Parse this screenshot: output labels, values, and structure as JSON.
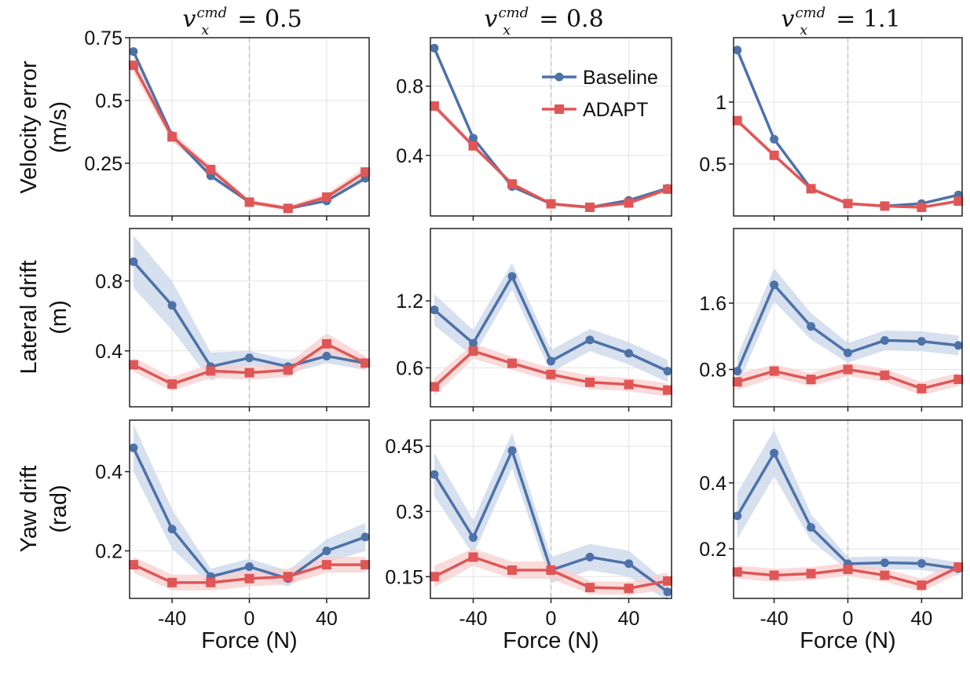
{
  "column_titles": [
    {
      "var": "v",
      "sub": "x",
      "sup": "cmd",
      "value": "= 0.5"
    },
    {
      "var": "v",
      "sub": "x",
      "sup": "cmd",
      "value": "= 0.8"
    },
    {
      "var": "v",
      "sub": "x",
      "sup": "cmd",
      "value": "= 1.1"
    }
  ],
  "row_labels": [
    {
      "line1": "Velocity error",
      "line2": "(m/s)"
    },
    {
      "line1": "Lateral drift",
      "line2": "(m)"
    },
    {
      "line1": "Yaw drift",
      "line2": "(rad)"
    }
  ],
  "xlabel": "Force (N)",
  "legend": [
    {
      "name": "Baseline",
      "color": "#4c72a8",
      "marker": "circle"
    },
    {
      "name": "ADAPT",
      "color": "#e05656",
      "marker": "square"
    }
  ],
  "colors": {
    "baseline": "#4c72a8",
    "adapt": "#e05656",
    "baseline_band": "#c9d5e9",
    "adapt_band": "#f8cfcf"
  },
  "chart_data": [
    {
      "type": "line",
      "row": 0,
      "col": 0,
      "x": [
        -60,
        -40,
        -20,
        0,
        20,
        40,
        60
      ],
      "xlim": [
        -62,
        62
      ],
      "ylim": [
        0.04,
        0.75
      ],
      "xticks": [
        -40,
        0,
        40
      ],
      "xtick_labels": [
        "-40",
        "0",
        "40"
      ],
      "yticks": [
        0.25,
        0.5,
        0.75
      ],
      "ytick_labels": [
        "0.25",
        "0.5",
        "0.75"
      ],
      "series": [
        {
          "name": "Baseline",
          "values": [
            0.695,
            0.36,
            0.2,
            0.095,
            0.07,
            0.1,
            0.19
          ],
          "band": [
            0.01,
            0.01,
            0.01,
            0.005,
            0.005,
            0.005,
            0.01
          ]
        },
        {
          "name": "ADAPT",
          "values": [
            0.64,
            0.355,
            0.225,
            0.095,
            0.07,
            0.115,
            0.215
          ],
          "band": [
            0.03,
            0.02,
            0.015,
            0.01,
            0.01,
            0.015,
            0.02
          ]
        }
      ]
    },
    {
      "type": "line",
      "row": 0,
      "col": 1,
      "x": [
        -60,
        -40,
        -20,
        0,
        20,
        40,
        60
      ],
      "xlim": [
        -62,
        62
      ],
      "ylim": [
        0.05,
        1.08
      ],
      "xticks": [
        -40,
        0,
        40
      ],
      "xtick_labels": [
        "-40",
        "0",
        "40"
      ],
      "yticks": [
        0.4,
        0.8
      ],
      "ytick_labels": [
        "0.4",
        "0.8"
      ],
      "legend_location": "top-right",
      "series": [
        {
          "name": "Baseline",
          "values": [
            1.02,
            0.5,
            0.22,
            0.12,
            0.1,
            0.14,
            0.21
          ],
          "band": [
            0.01,
            0.01,
            0.01,
            0.005,
            0.005,
            0.01,
            0.01
          ]
        },
        {
          "name": "ADAPT",
          "values": [
            0.685,
            0.455,
            0.235,
            0.12,
            0.1,
            0.125,
            0.205
          ],
          "band": [
            0.02,
            0.015,
            0.01,
            0.01,
            0.01,
            0.01,
            0.015
          ]
        }
      ]
    },
    {
      "type": "line",
      "row": 0,
      "col": 2,
      "x": [
        -60,
        -40,
        -20,
        0,
        20,
        40,
        60
      ],
      "xlim": [
        -62,
        62
      ],
      "ylim": [
        0.08,
        1.52
      ],
      "xticks": [
        -40,
        0,
        40
      ],
      "xtick_labels": [
        "-40",
        "0",
        "40"
      ],
      "yticks": [
        0.5,
        1.0
      ],
      "ytick_labels": [
        "0.5",
        "1"
      ],
      "series": [
        {
          "name": "Baseline",
          "values": [
            1.42,
            0.7,
            0.3,
            0.18,
            0.16,
            0.18,
            0.25
          ],
          "band": [
            0.01,
            0.01,
            0.01,
            0.005,
            0.005,
            0.01,
            0.01
          ]
        },
        {
          "name": "ADAPT",
          "values": [
            0.85,
            0.57,
            0.3,
            0.18,
            0.16,
            0.15,
            0.2
          ],
          "band": [
            0.02,
            0.02,
            0.015,
            0.01,
            0.01,
            0.01,
            0.015
          ]
        }
      ]
    },
    {
      "type": "line",
      "row": 1,
      "col": 0,
      "x": [
        -60,
        -40,
        -20,
        0,
        20,
        40,
        60
      ],
      "xlim": [
        -62,
        62
      ],
      "ylim": [
        0.08,
        1.1
      ],
      "xticks": [
        -40,
        0,
        40
      ],
      "xtick_labels": [
        "-40",
        "0",
        "40"
      ],
      "yticks": [
        0.4,
        0.8
      ],
      "ytick_labels": [
        "0.4",
        "0.8"
      ],
      "series": [
        {
          "name": "Baseline",
          "values": [
            0.91,
            0.66,
            0.31,
            0.36,
            0.31,
            0.37,
            0.33
          ],
          "band": [
            0.15,
            0.14,
            0.08,
            0.04,
            0.04,
            0.04,
            0.04
          ]
        },
        {
          "name": "ADAPT",
          "values": [
            0.32,
            0.21,
            0.285,
            0.275,
            0.29,
            0.44,
            0.33
          ],
          "band": [
            0.04,
            0.04,
            0.04,
            0.04,
            0.04,
            0.06,
            0.04
          ]
        }
      ]
    },
    {
      "type": "line",
      "row": 1,
      "col": 1,
      "x": [
        -60,
        -40,
        -20,
        0,
        20,
        40,
        60
      ],
      "xlim": [
        -62,
        62
      ],
      "ylim": [
        0.25,
        1.85
      ],
      "xticks": [
        -40,
        0,
        40
      ],
      "xtick_labels": [
        "-40",
        "0",
        "40"
      ],
      "yticks": [
        0.6,
        1.2
      ],
      "ytick_labels": [
        "0.6",
        "1.2"
      ],
      "series": [
        {
          "name": "Baseline",
          "values": [
            1.12,
            0.82,
            1.42,
            0.66,
            0.85,
            0.73,
            0.57
          ],
          "band": [
            0.14,
            0.12,
            0.12,
            0.1,
            0.1,
            0.1,
            0.1
          ]
        },
        {
          "name": "ADAPT",
          "values": [
            0.43,
            0.75,
            0.64,
            0.54,
            0.47,
            0.45,
            0.4
          ],
          "band": [
            0.08,
            0.07,
            0.06,
            0.06,
            0.06,
            0.06,
            0.06
          ]
        }
      ]
    },
    {
      "type": "line",
      "row": 1,
      "col": 2,
      "x": [
        -60,
        -40,
        -20,
        0,
        20,
        40,
        60
      ],
      "xlim": [
        -62,
        62
      ],
      "ylim": [
        0.35,
        2.5
      ],
      "xticks": [
        -40,
        0,
        40
      ],
      "xtick_labels": [
        "-40",
        "0",
        "40"
      ],
      "yticks": [
        0.8,
        1.6
      ],
      "ytick_labels": [
        "0.8",
        "1.6"
      ],
      "series": [
        {
          "name": "Baseline",
          "values": [
            0.78,
            1.82,
            1.32,
            1.0,
            1.15,
            1.14,
            1.09
          ],
          "band": [
            0.18,
            0.2,
            0.16,
            0.12,
            0.12,
            0.12,
            0.12
          ]
        },
        {
          "name": "ADAPT",
          "values": [
            0.65,
            0.78,
            0.68,
            0.8,
            0.73,
            0.57,
            0.68
          ],
          "band": [
            0.1,
            0.08,
            0.08,
            0.08,
            0.08,
            0.08,
            0.08
          ]
        }
      ]
    },
    {
      "type": "line",
      "row": 2,
      "col": 0,
      "x": [
        -60,
        -40,
        -20,
        0,
        20,
        40,
        60
      ],
      "xlim": [
        -62,
        62
      ],
      "ylim": [
        0.08,
        0.53
      ],
      "xticks": [
        -40,
        0,
        40
      ],
      "xtick_labels": [
        "-40",
        "0",
        "40"
      ],
      "yticks": [
        0.2,
        0.4
      ],
      "ytick_labels": [
        "0.2",
        "0.4"
      ],
      "series": [
        {
          "name": "Baseline",
          "values": [
            0.46,
            0.255,
            0.135,
            0.16,
            0.13,
            0.2,
            0.235
          ],
          "band": [
            0.06,
            0.05,
            0.02,
            0.02,
            0.02,
            0.03,
            0.035
          ]
        },
        {
          "name": "ADAPT",
          "values": [
            0.165,
            0.12,
            0.12,
            0.13,
            0.135,
            0.165,
            0.165
          ],
          "band": [
            0.02,
            0.02,
            0.02,
            0.02,
            0.02,
            0.02,
            0.02
          ]
        }
      ]
    },
    {
      "type": "line",
      "row": 2,
      "col": 1,
      "x": [
        -60,
        -40,
        -20,
        0,
        20,
        40,
        60
      ],
      "xlim": [
        -62,
        62
      ],
      "ylim": [
        0.1,
        0.51
      ],
      "xticks": [
        -40,
        0,
        40
      ],
      "xtick_labels": [
        "-40",
        "0",
        "40"
      ],
      "yticks": [
        0.15,
        0.3,
        0.45
      ],
      "ytick_labels": [
        "0.15",
        "0.3",
        "0.45"
      ],
      "series": [
        {
          "name": "Baseline",
          "values": [
            0.385,
            0.24,
            0.44,
            0.165,
            0.195,
            0.18,
            0.115
          ],
          "band": [
            0.05,
            0.04,
            0.04,
            0.03,
            0.03,
            0.03,
            0.02
          ]
        },
        {
          "name": "ADAPT",
          "values": [
            0.15,
            0.195,
            0.165,
            0.165,
            0.125,
            0.123,
            0.14
          ],
          "band": [
            0.025,
            0.02,
            0.02,
            0.02,
            0.015,
            0.015,
            0.02
          ]
        }
      ]
    },
    {
      "type": "line",
      "row": 2,
      "col": 2,
      "x": [
        -60,
        -40,
        -20,
        0,
        20,
        40,
        60
      ],
      "xlim": [
        -62,
        62
      ],
      "ylim": [
        0.05,
        0.59
      ],
      "xticks": [
        -40,
        0,
        40
      ],
      "xtick_labels": [
        "-40",
        "0",
        "40"
      ],
      "yticks": [
        0.2,
        0.4
      ],
      "ytick_labels": [
        "0.2",
        "0.4"
      ],
      "series": [
        {
          "name": "Baseline",
          "values": [
            0.3,
            0.49,
            0.265,
            0.155,
            0.158,
            0.156,
            0.14
          ],
          "band": [
            0.07,
            0.07,
            0.04,
            0.02,
            0.02,
            0.02,
            0.02
          ]
        },
        {
          "name": "ADAPT",
          "values": [
            0.13,
            0.12,
            0.125,
            0.138,
            0.12,
            0.09,
            0.145
          ],
          "band": [
            0.02,
            0.02,
            0.02,
            0.02,
            0.02,
            0.02,
            0.02
          ]
        }
      ]
    }
  ]
}
